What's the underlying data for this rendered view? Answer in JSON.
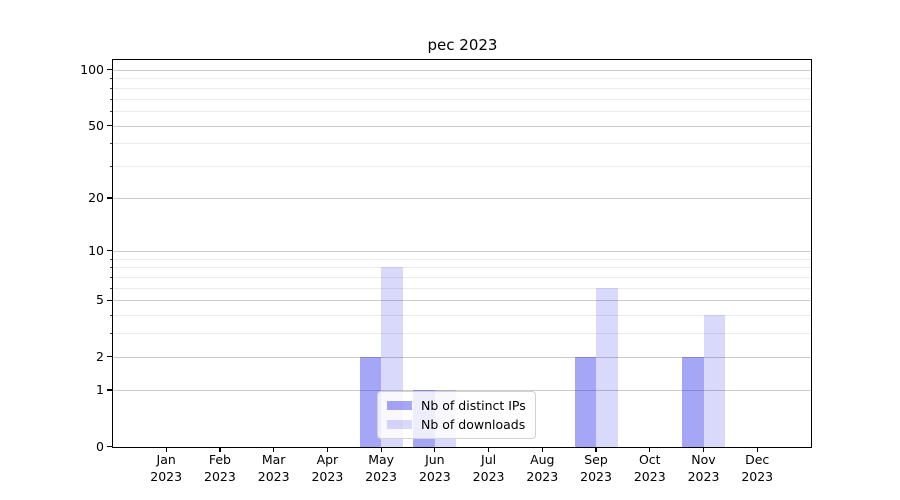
{
  "chart_data": {
    "type": "bar",
    "title": "pec 2023",
    "x": {
      "months": [
        "Jan",
        "Feb",
        "Mar",
        "Apr",
        "May",
        "Jun",
        "Jul",
        "Aug",
        "Sep",
        "Oct",
        "Nov",
        "Dec"
      ],
      "year": "2023"
    },
    "series": [
      {
        "name": "Nb of distinct IPs",
        "color": "rgba(0,0,230,0.35)",
        "values": [
          0,
          0,
          0,
          0,
          2,
          1,
          0,
          0,
          2,
          0,
          2,
          0
        ]
      },
      {
        "name": "Nb of downloads",
        "color": "rgba(0,0,230,0.15)",
        "values": [
          0,
          0,
          0,
          0,
          8,
          1,
          0,
          0,
          6,
          0,
          4,
          0
        ]
      }
    ],
    "yscale": "log1p",
    "y_ticks": [
      0,
      1,
      2,
      5,
      10,
      20,
      50,
      100
    ],
    "y_minor_gridlines": [
      3,
      4,
      6,
      7,
      8,
      9,
      30,
      40,
      60,
      70,
      80,
      90
    ],
    "ylim": [
      0,
      113
    ],
    "xlabel": "",
    "ylabel": "",
    "grid": true,
    "legend": {
      "position": "lower center",
      "labels": [
        "Nb of distinct IPs",
        "Nb of downloads"
      ]
    },
    "colors": {
      "grid_major": "#cccccc",
      "grid_minor": "#ebebeb",
      "spine": "#000000",
      "background": "#ffffff",
      "text": "#000000"
    }
  }
}
